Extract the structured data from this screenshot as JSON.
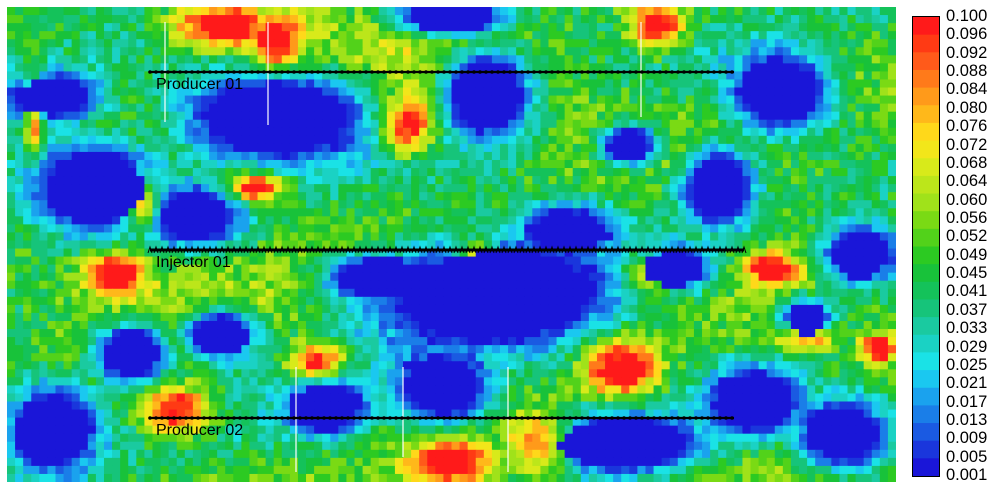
{
  "chart_data": {
    "type": "heatmap",
    "colorbar": {
      "ticks": [
        "0.100",
        "0.096",
        "0.092",
        "0.088",
        "0.084",
        "0.080",
        "0.076",
        "0.072",
        "0.068",
        "0.064",
        "0.060",
        "0.056",
        "0.052",
        "0.049",
        "0.045",
        "0.041",
        "0.037",
        "0.033",
        "0.029",
        "0.025",
        "0.021",
        "0.017",
        "0.013",
        "0.009",
        "0.005",
        "0.001"
      ],
      "range": [
        0.001,
        0.1
      ],
      "placement": "right",
      "colors": [
        "#ff1a1a",
        "#ff3a14",
        "#ff5a1a",
        "#ff7a1a",
        "#ff9a1a",
        "#ffb81a",
        "#ffd81a",
        "#f2e61a",
        "#d8ea1a",
        "#bce61a",
        "#a0e21a",
        "#7ada14",
        "#52d21a",
        "#2cca22",
        "#18c23a",
        "#14c25a",
        "#16c47a",
        "#1acaa0",
        "#1ad2c4",
        "#1ae2e6",
        "#1ac8f0",
        "#1aa2ee",
        "#1a7ee8",
        "#1a5ae2",
        "#1a36dc",
        "#1a16d8"
      ]
    },
    "wells": [
      {
        "name": "Producer 01",
        "type": "producer"
      },
      {
        "name": "Injector 01",
        "type": "injector"
      },
      {
        "name": "Producer 02",
        "type": "producer"
      }
    ],
    "grid_resolution": {
      "columns": 110,
      "rows": 59
    },
    "field_shape": "random heterogeneous porosity distribution with low-value (blue) patches and high-value (red/yellow) clusters",
    "xlabel": "",
    "ylabel": "",
    "title": ""
  }
}
